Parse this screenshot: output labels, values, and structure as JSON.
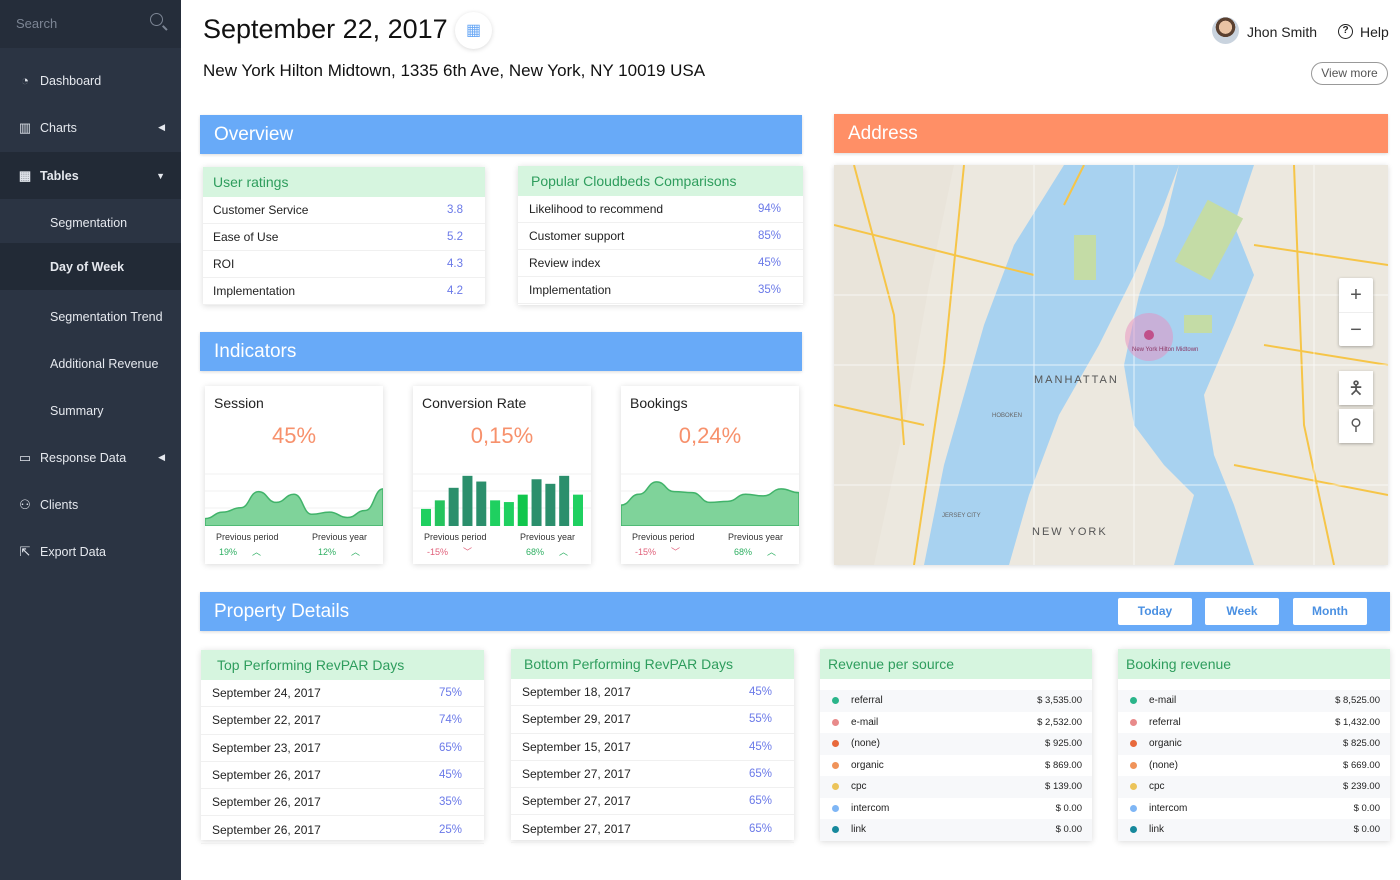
{
  "sidebar": {
    "search_placeholder": "Search",
    "items": [
      {
        "label": "Dashboard",
        "icon": "dashboard-icon"
      },
      {
        "label": "Charts",
        "icon": "bar-chart-icon"
      },
      {
        "label": "Tables",
        "icon": "table-icon"
      },
      {
        "label": "Segmentation"
      },
      {
        "label": "Day of Week"
      },
      {
        "label": "Segmentation Trend"
      },
      {
        "label": "Additional Revenue"
      },
      {
        "label": "Summary"
      },
      {
        "label": "Response Data",
        "icon": "response-icon"
      },
      {
        "label": "Clients",
        "icon": "user-icon"
      },
      {
        "label": "Export Data",
        "icon": "export-icon"
      }
    ]
  },
  "header": {
    "date": "September 22, 2017",
    "address": "New York Hilton Midtown,  1335 6th Ave, New York, NY 10019 USA",
    "user": "Jhon Smith",
    "help": "Help",
    "view_more": "View more"
  },
  "overview": {
    "title": "Overview",
    "ratings": {
      "title": "User ratings",
      "rows": [
        [
          "Customer Service",
          "3.8"
        ],
        [
          "Ease of Use",
          "5.2"
        ],
        [
          "ROI",
          "4.3"
        ],
        [
          "Implementation",
          "4.2"
        ]
      ]
    },
    "popular": {
      "title": "Popular Cloudbeds Comparisons",
      "rows": [
        [
          "Likelihood to recommend",
          "94%"
        ],
        [
          "Customer support",
          "85%"
        ],
        [
          "Review index",
          "45%"
        ],
        [
          "Implementation",
          "35%"
        ]
      ]
    }
  },
  "address": {
    "title": "Address",
    "map_labels": {
      "area": "MANHATTAN",
      "city": "NEW YORK",
      "jersey": "JERSEY CITY",
      "hoboken": "HOBOKEN",
      "pin": "New York Hilton Midtown"
    }
  },
  "indicators": {
    "title": "Indicators",
    "cards": [
      {
        "title": "Session",
        "value": "45%",
        "prev_period_label": "Previous period",
        "prev_period": "19%",
        "prev_period_trend": "up",
        "prev_year_label": "Previous year",
        "prev_year": "12%",
        "prev_year_trend": "up",
        "chart": "area",
        "series": [
          10,
          22,
          30,
          60,
          40,
          55,
          18,
          22,
          12,
          25,
          65
        ]
      },
      {
        "title": "Conversion Rate",
        "value": "0,15%",
        "prev_period_label": "Previous period",
        "prev_period": "-15%",
        "prev_period_trend": "down",
        "prev_year_label": "Previous year",
        "prev_year": "68%",
        "prev_year_trend": "up",
        "chart": "bar",
        "series": [
          30,
          45,
          67,
          88,
          78,
          45,
          42,
          55,
          82,
          74,
          88,
          55
        ]
      },
      {
        "title": "Bookings",
        "value": "0,24%",
        "prev_period_label": "Previous period",
        "prev_period": "-15%",
        "prev_period_trend": "down",
        "prev_year_label": "Previous year",
        "prev_year": "68%",
        "prev_year_trend": "up",
        "chart": "area",
        "series": [
          35,
          55,
          78,
          60,
          58,
          40,
          42,
          55,
          52,
          65,
          58
        ]
      }
    ]
  },
  "property": {
    "title": "Property Details",
    "buttons": [
      "Today",
      "Week",
      "Month"
    ],
    "top": {
      "title": "Top Performing RevPAR Days",
      "rows": [
        [
          "September 24, 2017",
          "75%"
        ],
        [
          "September 22, 2017",
          "74%"
        ],
        [
          "September 23, 2017",
          "65%"
        ],
        [
          "September 26, 2017",
          "45%"
        ],
        [
          "September 26, 2017",
          "35%"
        ],
        [
          "September 26, 2017",
          "25%"
        ]
      ]
    },
    "bottom": {
      "title": "Bottom Performing RevPAR Days",
      "rows": [
        [
          "September 18, 2017",
          "45%"
        ],
        [
          "September 29, 2017",
          "55%"
        ],
        [
          "September 15, 2017",
          "45%"
        ],
        [
          "September 27, 2017",
          "65%"
        ],
        [
          "September 27, 2017",
          "65%"
        ],
        [
          "September 27, 2017",
          "65%"
        ]
      ]
    },
    "revenue": {
      "title": "Revenue per source",
      "rows": [
        [
          "referral",
          "$ 3,535.00",
          "#2bb58a"
        ],
        [
          "e-mail",
          "$ 2,532.00",
          "#e88a8a"
        ],
        [
          "(none)",
          "$ 925.00",
          "#e8693c"
        ],
        [
          "organic",
          "$ 869.00",
          "#f0935a"
        ],
        [
          "cpc",
          "$ 139.00",
          "#ecc45a"
        ],
        [
          "intercom",
          "$ 0.00",
          "#7fb6f5"
        ],
        [
          "link",
          "$ 0.00",
          "#17899c"
        ]
      ]
    },
    "booking": {
      "title": "Booking revenue",
      "rows": [
        [
          "e-mail",
          "$ 8,525.00",
          "#2bb58a"
        ],
        [
          "referral",
          "$ 1,432.00",
          "#e88a8a"
        ],
        [
          "organic",
          "$ 825.00",
          "#e8693c"
        ],
        [
          "(none)",
          "$ 669.00",
          "#f0935a"
        ],
        [
          "cpc",
          "$ 239.00",
          "#ecc45a"
        ],
        [
          "intercom",
          "$ 0.00",
          "#7fb6f5"
        ],
        [
          "link",
          "$ 0.00",
          "#17899c"
        ]
      ]
    }
  }
}
